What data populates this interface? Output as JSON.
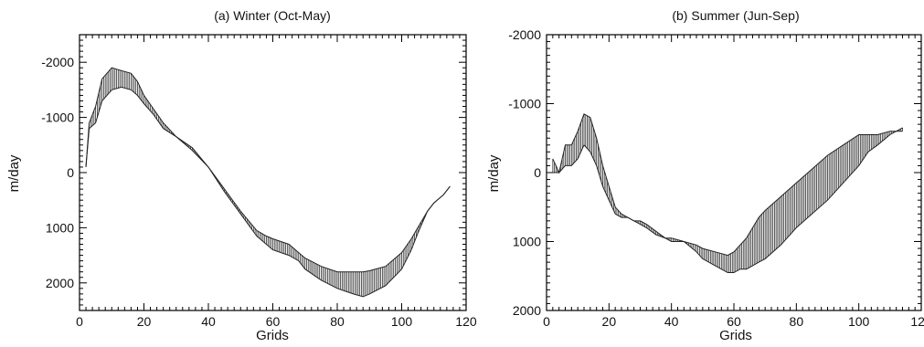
{
  "chart_data": [
    {
      "type": "line",
      "title": "(a) Winter (Oct-May)",
      "xlabel": "Grids",
      "ylabel": "m/day",
      "xlim": [
        0,
        120
      ],
      "ylim": [
        2500,
        -2500
      ],
      "y_inverted": true,
      "grid": false,
      "x_ticks": [
        0,
        20,
        40,
        60,
        80,
        100,
        120
      ],
      "y_ticks": [
        2000,
        1000,
        0,
        -1000,
        -2000
      ],
      "x_tick_labels": [
        "0",
        "20",
        "40",
        "60",
        "80",
        "100",
        "120"
      ],
      "y_tick_labels": [
        "2000",
        "1000",
        "0",
        "-1000",
        "-2000"
      ],
      "series": [
        {
          "x": [
            2,
            3,
            5,
            7,
            10,
            13,
            16,
            18,
            20,
            23,
            26,
            30,
            35,
            40,
            45,
            50,
            55,
            58,
            60,
            65,
            68,
            70,
            75,
            80,
            85,
            88,
            90,
            95,
            100,
            103,
            105,
            108,
            110,
            113,
            115
          ],
          "values": [
            -100,
            -800,
            -900,
            -1300,
            -1500,
            -1550,
            -1500,
            -1400,
            -1250,
            -1050,
            -800,
            -650,
            -400,
            -100,
            300,
            700,
            1050,
            1150,
            1200,
            1300,
            1450,
            1550,
            1700,
            1800,
            1800,
            1800,
            1780,
            1700,
            1450,
            1200,
            1000,
            700,
            550,
            400,
            250
          ]
        },
        {
          "x": [
            2,
            3,
            5,
            7,
            10,
            13,
            16,
            18,
            20,
            23,
            26,
            30,
            35,
            40,
            45,
            50,
            55,
            58,
            60,
            65,
            68,
            70,
            75,
            80,
            85,
            88,
            90,
            95,
            100,
            103,
            105,
            108,
            110,
            113,
            115
          ],
          "values": [
            -100,
            -900,
            -1200,
            -1700,
            -1900,
            -1850,
            -1800,
            -1650,
            -1400,
            -1150,
            -900,
            -650,
            -450,
            -100,
            350,
            750,
            1150,
            1300,
            1400,
            1500,
            1600,
            1750,
            1950,
            2100,
            2200,
            2250,
            2200,
            2050,
            1750,
            1400,
            1100,
            700,
            550,
            400,
            250
          ]
        }
      ]
    },
    {
      "type": "line",
      "title": "(b) Summer (Jun-Sep)",
      "xlabel": "Grids",
      "ylabel": "m/day",
      "xlim": [
        0,
        120
      ],
      "ylim": [
        2000,
        -2000
      ],
      "y_inverted": true,
      "grid": false,
      "x_ticks": [
        0,
        20,
        40,
        60,
        80,
        100,
        120
      ],
      "y_ticks": [
        2000,
        1000,
        0,
        -1000,
        -2000
      ],
      "x_tick_labels": [
        "0",
        "20",
        "40",
        "60",
        "80",
        "100",
        "120"
      ],
      "y_tick_labels": [
        "2000",
        "1000",
        "0",
        "-1000",
        "-2000"
      ],
      "series": [
        {
          "x": [
            2,
            4,
            6,
            8,
            10,
            12,
            14,
            16,
            18,
            20,
            22,
            24,
            26,
            28,
            30,
            32,
            35,
            38,
            40,
            44,
            48,
            50,
            54,
            58,
            60,
            62,
            64,
            66,
            68,
            70,
            75,
            80,
            85,
            90,
            95,
            100,
            103,
            106,
            110,
            114
          ],
          "values": [
            0,
            0,
            -100,
            -100,
            -200,
            -400,
            -300,
            -100,
            200,
            400,
            600,
            650,
            650,
            700,
            700,
            750,
            850,
            950,
            1000,
            1000,
            1050,
            1100,
            1150,
            1200,
            1150,
            1050,
            950,
            800,
            650,
            550,
            350,
            150,
            -50,
            -250,
            -400,
            -550,
            -550,
            -550,
            -600,
            -600
          ]
        },
        {
          "x": [
            2,
            4,
            6,
            8,
            10,
            12,
            14,
            16,
            18,
            20,
            22,
            24,
            26,
            28,
            30,
            32,
            35,
            38,
            40,
            44,
            48,
            50,
            54,
            58,
            60,
            62,
            64,
            66,
            68,
            70,
            75,
            80,
            85,
            90,
            95,
            100,
            103,
            106,
            110,
            114
          ],
          "values": [
            -200,
            0,
            -400,
            -400,
            -600,
            -850,
            -800,
            -500,
            -100,
            200,
            500,
            600,
            650,
            700,
            750,
            800,
            900,
            950,
            950,
            1000,
            1150,
            1250,
            1350,
            1450,
            1450,
            1400,
            1400,
            1350,
            1300,
            1250,
            1050,
            800,
            600,
            400,
            150,
            -100,
            -300,
            -400,
            -550,
            -650
          ]
        }
      ]
    }
  ]
}
